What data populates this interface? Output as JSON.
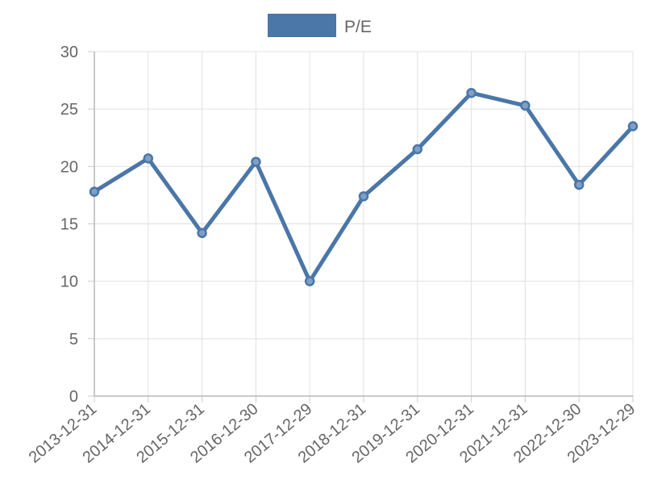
{
  "chart_data": {
    "type": "line",
    "title": "",
    "xlabel": "",
    "ylabel": "",
    "categories": [
      "2013-12-31",
      "2014-12-31",
      "2015-12-31",
      "2016-12-30",
      "2017-12-29",
      "2018-12-31",
      "2019-12-31",
      "2020-12-31",
      "2021-12-31",
      "2022-12-30",
      "2023-12-29"
    ],
    "series": [
      {
        "name": "P/E",
        "values": [
          17.8,
          20.7,
          14.2,
          20.4,
          10.0,
          17.4,
          21.5,
          26.4,
          25.3,
          18.4,
          23.5
        ],
        "color": "#4a76a8"
      }
    ],
    "ylim": [
      0,
      30
    ],
    "y_ticks": [
      0,
      5,
      10,
      15,
      20,
      25,
      30
    ],
    "grid": true,
    "legend_position": "top"
  }
}
